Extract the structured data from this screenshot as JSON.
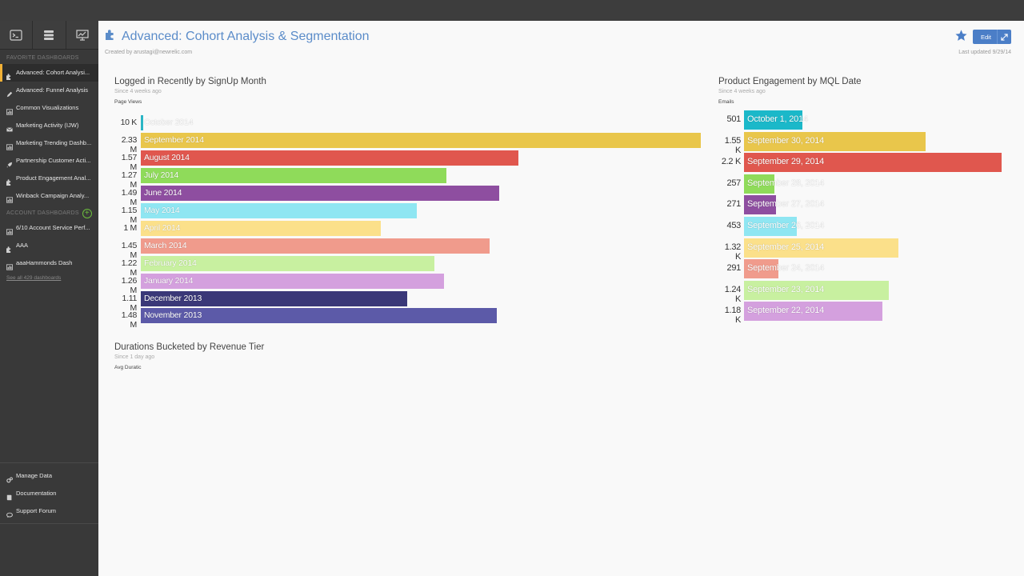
{
  "sidebar": {
    "favorites_title": "FAVORITE DASHBOARDS",
    "favorites": [
      {
        "label": "Advanced: Cohort Analysi...",
        "icon": "puzzle-icon",
        "active": true
      },
      {
        "label": "Advanced: Funnel Analysis",
        "icon": "pencil-icon"
      },
      {
        "label": "Common Visualizations",
        "icon": "chart-icon"
      },
      {
        "label": "Marketing Activity (IJW)",
        "icon": "mail-icon"
      },
      {
        "label": "Marketing Trending Dashb...",
        "icon": "chart-icon"
      },
      {
        "label": "Partnership Customer Acti...",
        "icon": "rocket-icon"
      },
      {
        "label": "Product Engagement Anal...",
        "icon": "puzzle-icon"
      },
      {
        "label": "Winback Campaign Analy...",
        "icon": "chart-icon"
      }
    ],
    "account_title": "ACCOUNT DASHBOARDS",
    "account": [
      {
        "label": "6/10 Account Service Perf...",
        "icon": "chart-icon"
      },
      {
        "label": "AAA",
        "icon": "puzzle-icon"
      },
      {
        "label": "aaaHammonds Dash",
        "icon": "chart-icon"
      }
    ],
    "see_all": "See all 429 dashboards",
    "bottom": [
      {
        "label": "Manage Data",
        "icon": "gears-icon"
      },
      {
        "label": "Documentation",
        "icon": "book-icon"
      },
      {
        "label": "Support Forum",
        "icon": "comments-icon"
      }
    ]
  },
  "header": {
    "title": "Advanced: Cohort Analysis & Segmentation",
    "created_by": "Created by arustagi@newrelic.com",
    "last_updated": "Last updated 9/29/14",
    "edit_label": "Edit",
    "colors": {
      "accent": "#4b7ec7",
      "title": "#5b8cc9"
    }
  },
  "widgets": {
    "logged_in": {
      "title": "Logged in Recently by SignUp Month",
      "since": "Since 4 weeks ago",
      "metric": "Page Views",
      "chart_data": {
        "type": "bar",
        "orientation": "horizontal",
        "bars": [
          {
            "label": "October 2014",
            "value": 10000,
            "display": "10 K",
            "color": "#2ab5c5"
          },
          {
            "label": "September 2014",
            "value": 2330000,
            "display": "2.33 M",
            "color": "#e9c64b"
          },
          {
            "label": "August 2014",
            "value": 1570000,
            "display": "1.57 M",
            "color": "#e0574e"
          },
          {
            "label": "July 2014",
            "value": 1270000,
            "display": "1.27 M",
            "color": "#8fdb5a"
          },
          {
            "label": "June 2014",
            "value": 1490000,
            "display": "1.49 M",
            "color": "#8e4ea0"
          },
          {
            "label": "May 2014",
            "value": 1150000,
            "display": "1.15 M",
            "color": "#8fe6f2"
          },
          {
            "label": "April 2014",
            "value": 1000000,
            "display": "1 M",
            "color": "#fbe08a"
          },
          {
            "label": "March 2014",
            "value": 1450000,
            "display": "1.45 M",
            "color": "#f09b8c"
          },
          {
            "label": "February 2014",
            "value": 1220000,
            "display": "1.22 M",
            "color": "#c8f0a0"
          },
          {
            "label": "January 2014",
            "value": 1260000,
            "display": "1.26 M",
            "color": "#d4a0de"
          },
          {
            "label": "December 2013",
            "value": 1110000,
            "display": "1.11 M",
            "color": "#3a3878"
          },
          {
            "label": "November 2013",
            "value": 1480000,
            "display": "1.48 M",
            "color": "#5c5aa8"
          }
        ],
        "xlim": [
          0,
          2330000
        ]
      }
    },
    "engagement": {
      "title": "Product Engagement by MQL Date",
      "since": "Since 4 weeks ago",
      "metric": "Emails",
      "chart_data": {
        "type": "bar",
        "orientation": "horizontal",
        "bars": [
          {
            "label": "October 1, 2014",
            "value": 501,
            "display": "501",
            "color": "#1bb8c9"
          },
          {
            "label": "September 30, 2014",
            "value": 1550,
            "display": "1.55 K",
            "color": "#e9c64b"
          },
          {
            "label": "September 29, 2014",
            "value": 2200,
            "display": "2.2 K",
            "color": "#e0574e"
          },
          {
            "label": "September 28, 2014",
            "value": 257,
            "display": "257",
            "color": "#8fdb5a"
          },
          {
            "label": "September 27, 2014",
            "value": 271,
            "display": "271",
            "color": "#8e4ea0"
          },
          {
            "label": "September 26, 2014",
            "value": 453,
            "display": "453",
            "color": "#8fe6f2"
          },
          {
            "label": "September 25, 2014",
            "value": 1320,
            "display": "1.32 K",
            "color": "#fbe08a"
          },
          {
            "label": "September 24, 2014",
            "value": 291,
            "display": "291",
            "color": "#f09b8c"
          },
          {
            "label": "September 23, 2014",
            "value": 1240,
            "display": "1.24 K",
            "color": "#c8f0a0"
          },
          {
            "label": "September 22, 2014",
            "value": 1180,
            "display": "1.18 K",
            "color": "#d4a0de"
          }
        ],
        "xlim": [
          0,
          2200
        ]
      }
    },
    "durations": {
      "title": "Durations Bucketed by Revenue Tier",
      "since": "Since 1 day ago",
      "metric": "Avg Duratic"
    }
  }
}
